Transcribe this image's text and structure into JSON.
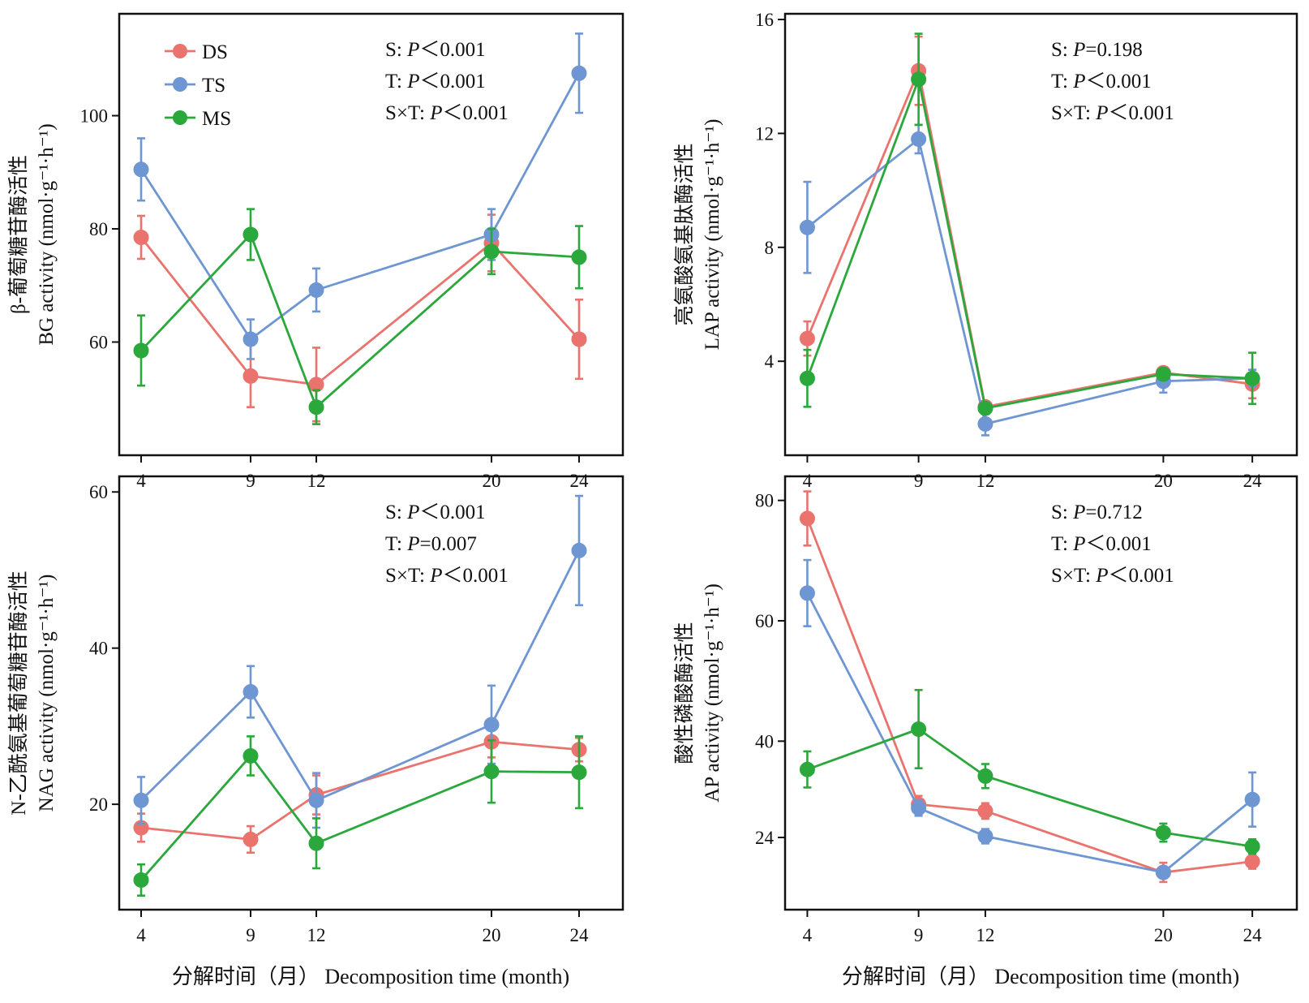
{
  "colors": {
    "DS": "#ea736d",
    "TS": "#6e96d2",
    "MS": "#2aa83c"
  },
  "legend": [
    {
      "key": "DS",
      "label": "DS"
    },
    {
      "key": "TS",
      "label": "TS"
    },
    {
      "key": "MS",
      "label": "MS"
    }
  ],
  "xlabel_left": "分解时间（月） Decomposition time (month)",
  "xlabel_right": "分解时间（月） Decomposition time (month)",
  "chart_data": [
    {
      "type": "line",
      "ylabel_cn": "β-葡萄糖苷酶活性",
      "ylabel_en": "BG activity (nmol·g⁻¹·h⁻¹)",
      "x": [
        4,
        9,
        12,
        20,
        24
      ],
      "xlim": [
        3,
        26
      ],
      "ylim": [
        40,
        118
      ],
      "yticks": [
        60,
        80,
        100
      ],
      "xticks": [
        4,
        9,
        12,
        20,
        24
      ],
      "stats": [
        {
          "pre": "S: ",
          "p": "P",
          "post": "＜0.001"
        },
        {
          "pre": "T: ",
          "p": "P",
          "post": "＜0.001"
        },
        {
          "pre": "S×T: ",
          "p": "P",
          "post": "＜0.001"
        }
      ],
      "series": [
        {
          "name": "DS",
          "values": [
            78.5,
            54,
            52.5,
            77.5,
            60.5
          ],
          "errors": [
            3.8,
            5.5,
            6.5,
            5,
            7
          ]
        },
        {
          "name": "TS",
          "values": [
            90.5,
            60.5,
            69.2,
            79,
            107.5
          ],
          "errors": [
            5.5,
            3.5,
            3.8,
            4.5,
            7
          ]
        },
        {
          "name": "MS",
          "values": [
            58.5,
            79,
            48.5,
            76,
            75
          ],
          "errors": [
            6.2,
            4.5,
            3,
            4,
            5.5
          ]
        }
      ]
    },
    {
      "type": "line",
      "ylabel_cn": "亮氨酸氨基肽酶活性",
      "ylabel_en": "LAP activity (nmol·g⁻¹·h⁻¹)",
      "x": [
        4,
        9,
        12,
        20,
        24
      ],
      "xlim": [
        3,
        26
      ],
      "ylim": [
        0.7,
        16.2
      ],
      "yticks": [
        4,
        8,
        12,
        16
      ],
      "xticks": [
        4,
        9,
        12,
        20,
        24
      ],
      "stats": [
        {
          "pre": "S: ",
          "p": "P",
          "post": "=0.198"
        },
        {
          "pre": "T: ",
          "p": "P",
          "post": "＜0.001"
        },
        {
          "pre": "S×T: ",
          "p": "P",
          "post": "＜0.001"
        }
      ],
      "series": [
        {
          "name": "DS",
          "values": [
            4.8,
            14.2,
            2.4,
            3.6,
            3.2
          ],
          "errors": [
            0.6,
            1.2,
            0.2,
            0.2,
            0.5
          ]
        },
        {
          "name": "TS",
          "values": [
            8.7,
            11.8,
            1.8,
            3.3,
            3.4
          ],
          "errors": [
            1.6,
            0.5,
            0.4,
            0.4,
            0.3
          ]
        },
        {
          "name": "MS",
          "values": [
            3.4,
            13.9,
            2.35,
            3.55,
            3.4
          ],
          "errors": [
            1.0,
            1.6,
            0.2,
            0.2,
            0.9
          ]
        }
      ]
    },
    {
      "type": "line",
      "ylabel_cn": "N-乙酰氨基葡萄糖苷酶活性",
      "ylabel_en": "NAG activity (nmol·g⁻¹·h⁻¹)",
      "x": [
        4,
        9,
        12,
        20,
        24
      ],
      "xlim": [
        3,
        26
      ],
      "ylim": [
        6.5,
        62
      ],
      "yticks": [
        20,
        40,
        60
      ],
      "xticks": [
        4,
        9,
        12,
        20,
        24
      ],
      "stats": [
        {
          "pre": "S: ",
          "p": "P",
          "post": "＜0.001"
        },
        {
          "pre": "T: ",
          "p": "P",
          "post": "=0.007"
        },
        {
          "pre": "S×T: ",
          "p": "P",
          "post": "＜0.001"
        }
      ],
      "series": [
        {
          "name": "DS",
          "values": [
            17,
            15.5,
            21.2,
            28,
            27
          ],
          "errors": [
            1.8,
            1.7,
            2.5,
            2,
            1.5
          ]
        },
        {
          "name": "TS",
          "values": [
            20.5,
            34.4,
            20.5,
            30.2,
            52.5
          ],
          "errors": [
            3,
            3.3,
            3.5,
            5,
            7
          ]
        },
        {
          "name": "MS",
          "values": [
            10.3,
            26.2,
            15,
            24.2,
            24.1
          ],
          "errors": [
            2,
            2.5,
            3.2,
            4,
            4.6
          ]
        }
      ]
    },
    {
      "type": "line",
      "ylabel_cn": "酸性磷酸酶活性",
      "ylabel_en": "AP activity (nmol·g⁻¹·h⁻¹)",
      "x": [
        4,
        9,
        12,
        20,
        24
      ],
      "xlim": [
        3,
        26
      ],
      "ylim": [
        12,
        84
      ],
      "yticks": [
        24,
        40,
        60,
        80
      ],
      "xticks": [
        4,
        9,
        12,
        20,
        24
      ],
      "stats": [
        {
          "pre": "S: ",
          "p": "P",
          "post": "=0.712"
        },
        {
          "pre": "T: ",
          "p": "P",
          "post": "＜0.001"
        },
        {
          "pre": "S×T: ",
          "p": "P",
          "post": "＜0.001"
        }
      ],
      "series": [
        {
          "name": "DS",
          "values": [
            77,
            29.5,
            28.4,
            18.2,
            20
          ],
          "errors": [
            4.5,
            1.4,
            1.3,
            1.6,
            1.2
          ]
        },
        {
          "name": "TS",
          "values": [
            64.6,
            28.9,
            24.2,
            18.2,
            30.3
          ],
          "errors": [
            5.5,
            1.3,
            1.2,
            0.8,
            4.5
          ]
        },
        {
          "name": "MS",
          "values": [
            35.3,
            42,
            34.2,
            24.8,
            22.5
          ],
          "errors": [
            3,
            6.5,
            2,
            1.5,
            1.2
          ]
        }
      ]
    }
  ]
}
